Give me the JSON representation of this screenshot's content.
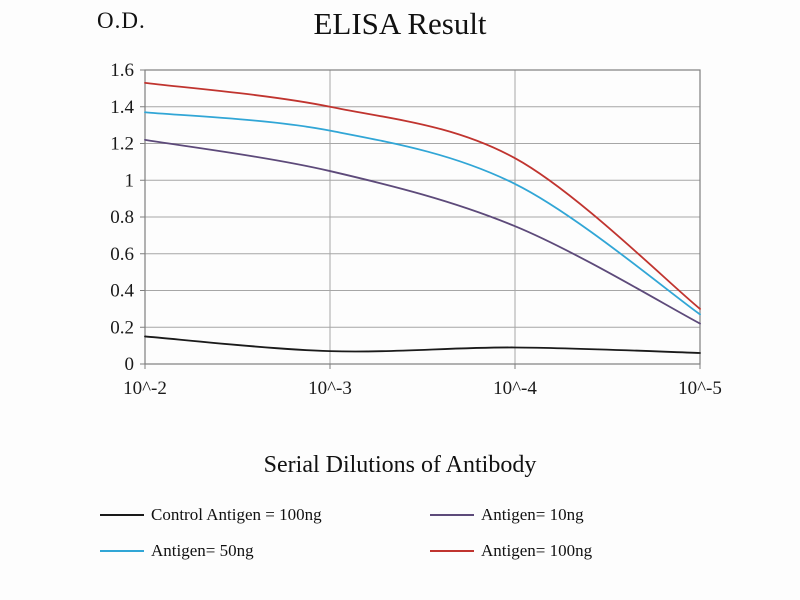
{
  "chart_data": {
    "type": "line",
    "title": "ELISA Result",
    "ylabel": "O.D.",
    "xlabel": "Serial Dilutions of Antibody",
    "categories": [
      "10^-2",
      "10^-3",
      "10^-4",
      "10^-5"
    ],
    "ylim": [
      0,
      1.6
    ],
    "ytick_step": 0.2,
    "ytick_labels": [
      "0",
      "0.2",
      "0.4",
      "0.6",
      "0.8",
      "1",
      "1.2",
      "1.4",
      "1.6"
    ],
    "grid": true,
    "legend_position": "bottom",
    "colors": {
      "grid": "#a6a6a6",
      "axis_box": "#7f7f7f",
      "text": "#1a1a1a"
    },
    "series": [
      {
        "name": "Control Antigen = 100ng",
        "color": "#1a1a1a",
        "values": [
          0.15,
          0.07,
          0.09,
          0.06
        ]
      },
      {
        "name": "Antigen= 10ng",
        "color": "#5d4a7a",
        "values": [
          1.22,
          1.05,
          0.75,
          0.22
        ]
      },
      {
        "name": "Antigen= 50ng",
        "color": "#31a6d6",
        "values": [
          1.37,
          1.27,
          0.98,
          0.27
        ]
      },
      {
        "name": "Antigen= 100ng",
        "color": "#c0342f",
        "values": [
          1.53,
          1.4,
          1.12,
          0.3
        ]
      }
    ]
  }
}
